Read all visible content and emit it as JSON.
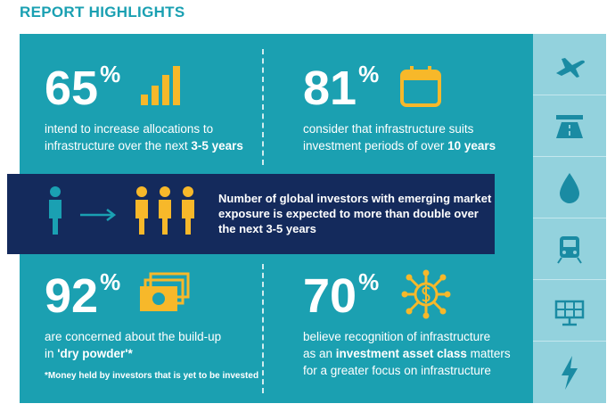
{
  "header": {
    "title": "REPORT HIGHLIGHTS"
  },
  "stats": [
    {
      "number": "65",
      "unit": "%",
      "lines": [
        [
          {
            "text": "intend to increase allocations to"
          }
        ],
        [
          {
            "text": "infrastructure over the next "
          },
          {
            "text": "3-5 years",
            "bold": true
          }
        ]
      ]
    },
    {
      "number": "81",
      "unit": "%",
      "lines": [
        [
          {
            "text": "consider that infrastructure suits"
          }
        ],
        [
          {
            "text": "investment periods of over "
          },
          {
            "text": "10 years",
            "bold": true
          }
        ]
      ]
    },
    {
      "number": "92",
      "unit": "%",
      "lines": [
        [
          {
            "text": "are concerned about the build-up"
          }
        ],
        [
          {
            "text": "in "
          },
          {
            "text": "'dry powder'*",
            "bold": true
          }
        ]
      ],
      "footnote": "*Money held by investors that is yet to be invested"
    },
    {
      "number": "70",
      "unit": "%",
      "lines": [
        [
          {
            "text": "believe recognition of infrastructure"
          }
        ],
        [
          {
            "text": "as an "
          },
          {
            "text": "investment asset class",
            "bold": true
          },
          {
            "text": " matters"
          }
        ],
        [
          {
            "text": "for a greater focus on infrastructure"
          }
        ]
      ]
    }
  ],
  "banner": {
    "lines": [
      [
        {
          "text": "Number of global investors with emerging market"
        }
      ],
      [
        {
          "text": "exposure is expected to "
        },
        {
          "text": "more than double over",
          "bold": true
        }
      ],
      [
        {
          "text": "the next 3-5 years",
          "bold": true
        }
      ]
    ]
  }
}
